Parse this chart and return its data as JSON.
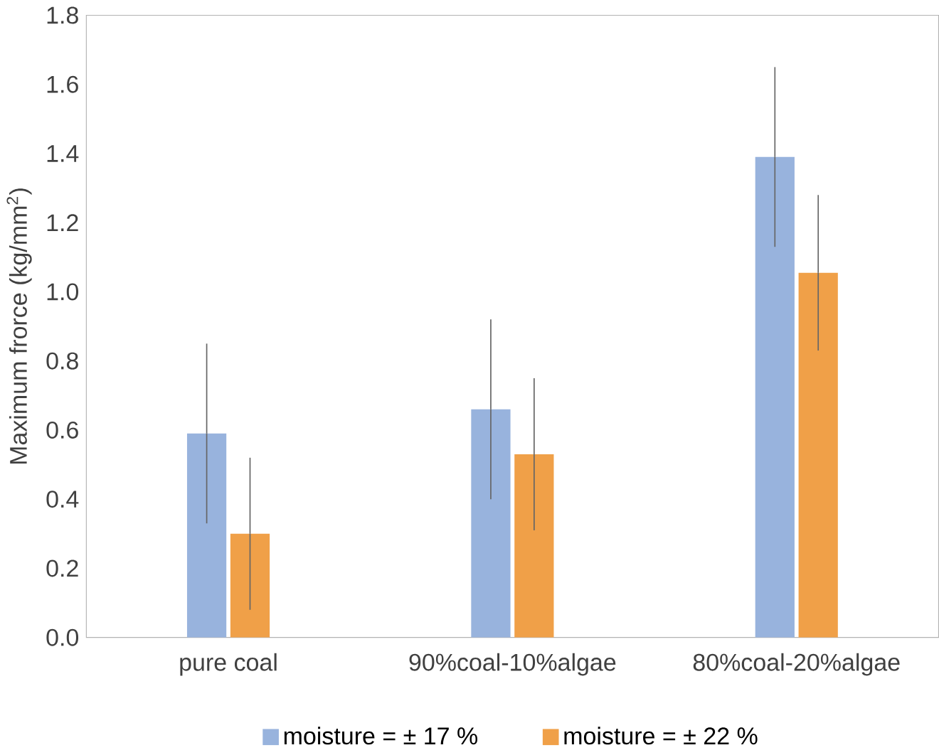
{
  "chart_data": {
    "type": "bar",
    "ylabel": "Maximum frorce (kg/mm$^{2}$)",
    "categories": [
      "pure coal",
      "90%coal-10%algae",
      "80%coal-20%algae"
    ],
    "series": [
      {
        "name": "moisture = ± 17 %",
        "color": "#98b3dd",
        "values": [
          0.59,
          0.66,
          1.39
        ],
        "errors": [
          0.26,
          0.26,
          0.26
        ]
      },
      {
        "name": "moisture = ± 22 %",
        "color": "#f0a048",
        "values": [
          0.3,
          0.53,
          1.055
        ],
        "errors": [
          0.22,
          0.22,
          0.225
        ]
      }
    ],
    "ylim": [
      0,
      1.8
    ],
    "yticks": [
      {
        "value": 0,
        "label": "0.0"
      },
      {
        "value": 0.2,
        "label": "0.2"
      },
      {
        "value": 0.4,
        "label": "0.4"
      },
      {
        "value": 0.6,
        "label": "0.6"
      },
      {
        "value": 0.8,
        "label": "0.8"
      },
      {
        "value": 1.0,
        "label": "1.0"
      },
      {
        "value": 1.2,
        "label": "1.2"
      },
      {
        "value": 1.4,
        "label": "1.4"
      },
      {
        "value": 1.6,
        "label": "1.6"
      },
      {
        "value": 1.8,
        "label": "1.8"
      }
    ],
    "grid": false,
    "legend": "bottom"
  }
}
